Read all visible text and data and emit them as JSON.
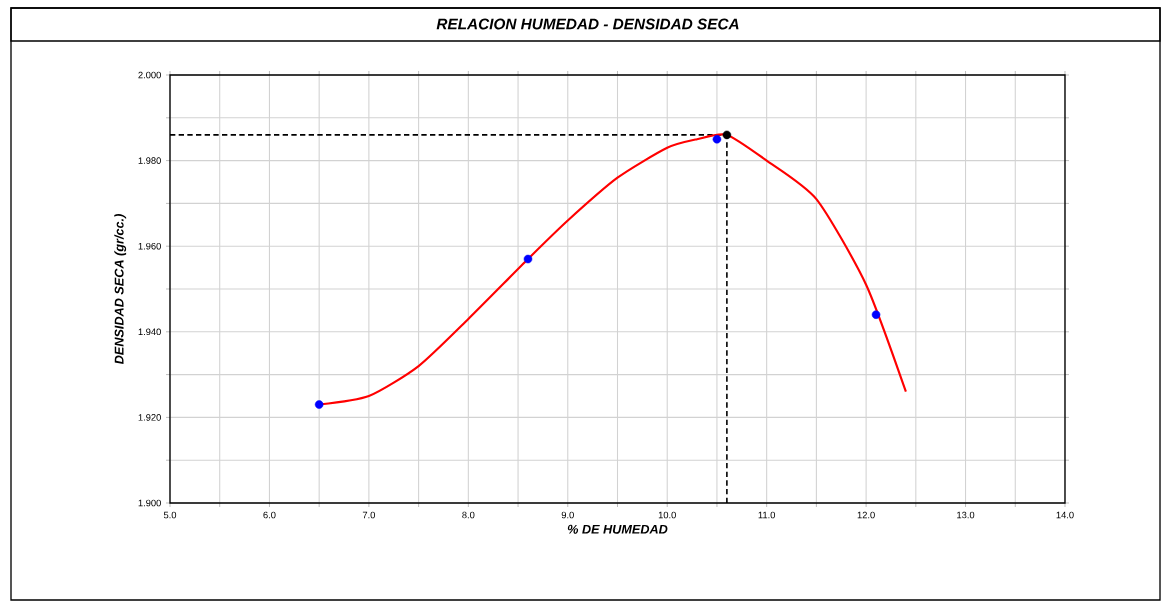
{
  "chart_data": {
    "type": "scatter",
    "title": "RELACION HUMEDAD - DENSIDAD SECA",
    "xlabel": "% DE HUMEDAD",
    "ylabel": "DENSIDAD SECA (gr/cc.)",
    "xlim": [
      5,
      14
    ],
    "ylim": [
      1.9,
      2.0
    ],
    "xticks": [
      {
        "value": 5,
        "label": "5.0"
      },
      {
        "value": 5.5,
        "label": null
      },
      {
        "value": 6,
        "label": "6.0"
      },
      {
        "value": 6.5,
        "label": null
      },
      {
        "value": 7,
        "label": "7.0"
      },
      {
        "value": 7.5,
        "label": null
      },
      {
        "value": 8,
        "label": "8.0"
      },
      {
        "value": 8.5,
        "label": null
      },
      {
        "value": 9,
        "label": "9.0"
      },
      {
        "value": 9.5,
        "label": null
      },
      {
        "value": 10,
        "label": "10.0"
      },
      {
        "value": 10.5,
        "label": null
      },
      {
        "value": 11,
        "label": "11.0"
      },
      {
        "value": 11.5,
        "label": null
      },
      {
        "value": 12,
        "label": "12.0"
      },
      {
        "value": 12.5,
        "label": null
      },
      {
        "value": 13,
        "label": "13.0"
      },
      {
        "value": 13.5,
        "label": null
      },
      {
        "value": 14,
        "label": "14.0"
      }
    ],
    "yticks": [
      {
        "value": 1.9,
        "label": "1.900"
      },
      {
        "value": 1.91,
        "label": null
      },
      {
        "value": 1.92,
        "label": "1.920"
      },
      {
        "value": 1.93,
        "label": null
      },
      {
        "value": 1.94,
        "label": "1.940"
      },
      {
        "value": 1.95,
        "label": null
      },
      {
        "value": 1.96,
        "label": "1.960"
      },
      {
        "value": 1.97,
        "label": null
      },
      {
        "value": 1.98,
        "label": "1.980"
      },
      {
        "value": 1.99,
        "label": null
      },
      {
        "value": 2.0,
        "label": "2.000"
      }
    ],
    "grid": true,
    "series": [
      {
        "type": "line",
        "color": "#ff0000",
        "marker": "none",
        "x": [
          6.5,
          7.0,
          7.5,
          8.0,
          8.6,
          9.0,
          9.5,
          10.0,
          10.3,
          10.6,
          11.0,
          11.5,
          12.0,
          12.4
        ],
        "values": [
          1.923,
          1.925,
          1.932,
          1.943,
          1.957,
          1.966,
          1.976,
          1.983,
          1.985,
          1.986,
          1.98,
          1.971,
          1.951,
          1.926
        ]
      },
      {
        "color": "#0000ff",
        "marker": "circle",
        "x": [
          6.5,
          8.6,
          10.5,
          12.1
        ],
        "values": [
          1.923,
          1.957,
          1.985,
          1.944
        ]
      },
      {
        "color": "#000000",
        "marker": "circle",
        "x": [
          10.6
        ],
        "values": [
          1.986
        ]
      }
    ],
    "ref_lines": [
      {
        "axis": "y",
        "value": 1.986,
        "color": "#000000",
        "line_style": "dashed"
      },
      {
        "axis": "x",
        "value": 10.6,
        "color": "#000000",
        "line_style": "dashed"
      }
    ]
  }
}
